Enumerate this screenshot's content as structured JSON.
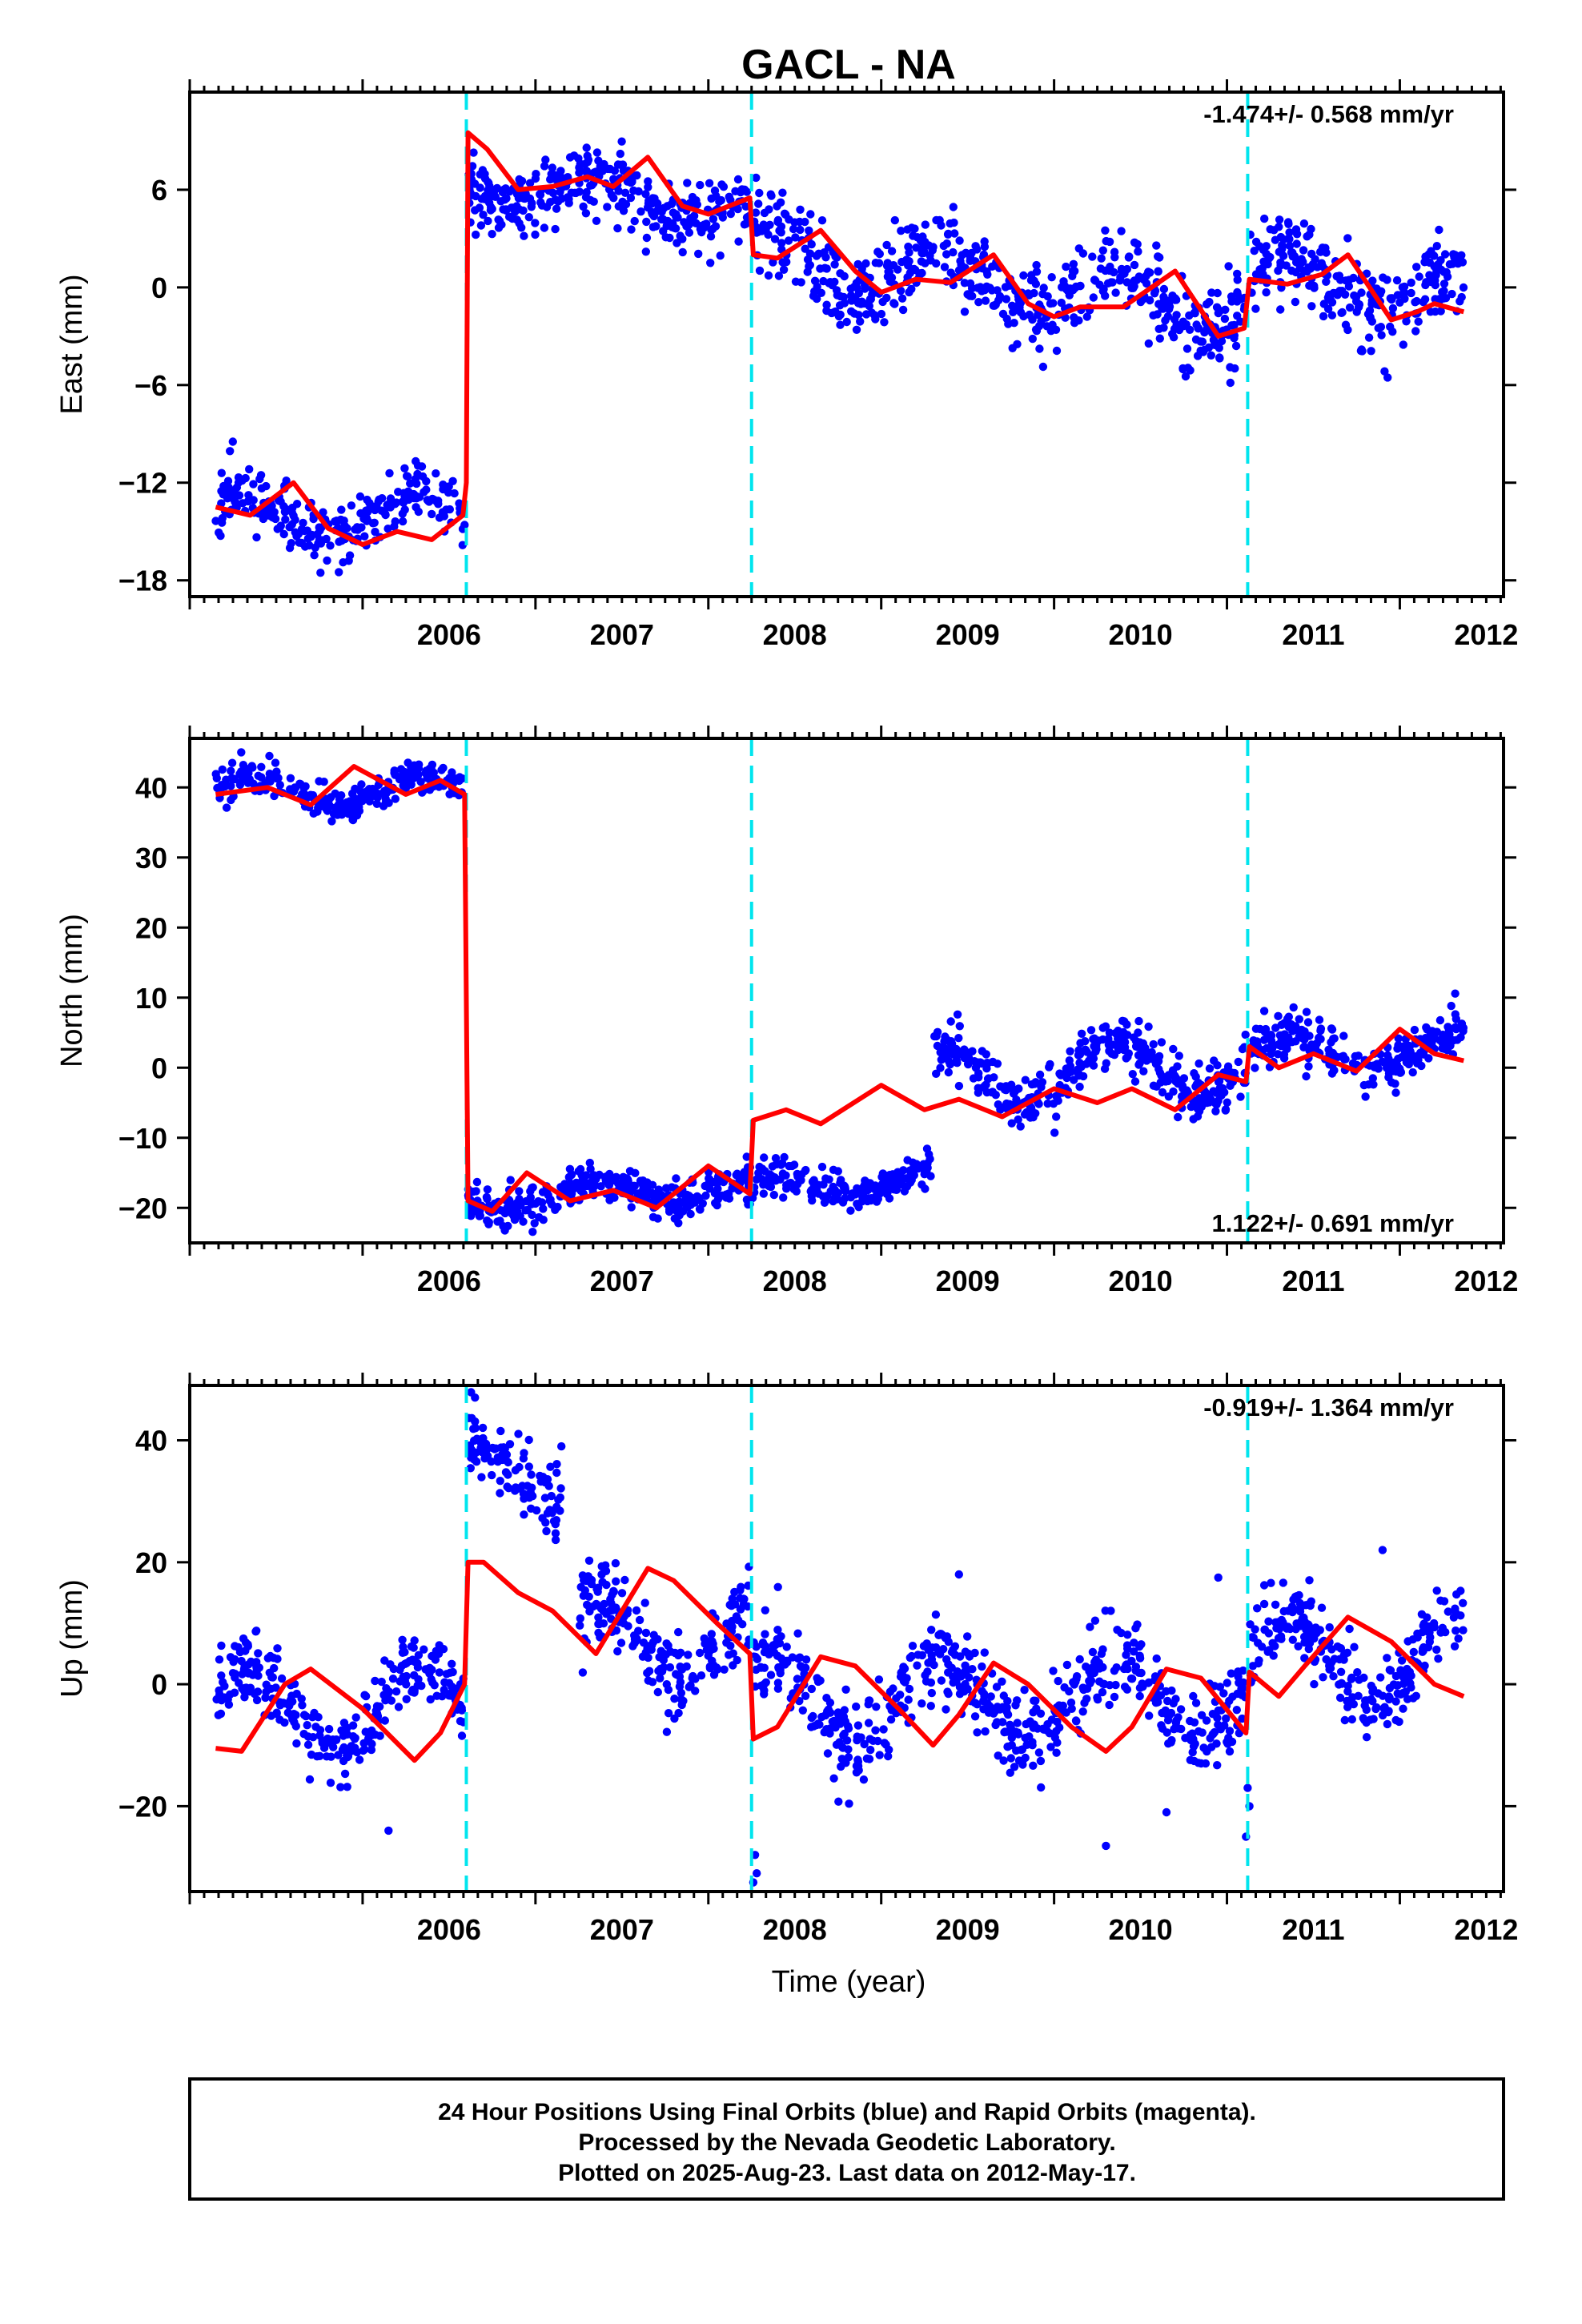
{
  "chart_data": {
    "type": "scatter",
    "title": "GACL - NA",
    "xlabel": "Time (year)",
    "x_tick_labels": [
      "2006",
      "2007",
      "2008",
      "2009",
      "2010",
      "2011",
      "2012"
    ],
    "xlim": [
      2005.0,
      2012.6
    ],
    "offset_epochs": [
      2006.6,
      2008.25,
      2011.12
    ],
    "colors": {
      "points": "#0000ff",
      "model": "#ff0000",
      "offsets": "#00e5ee",
      "frame": "#000000"
    },
    "grid": false,
    "legend": "none",
    "panels": [
      {
        "name": "east",
        "ylabel": "East (mm)",
        "ylim": [
          -19,
          12
        ],
        "yticks": [
          -18,
          -12,
          -6,
          0,
          6
        ],
        "ytick_labels": [
          "−18",
          "−12",
          "−6",
          "0",
          "6"
        ],
        "rate_text": "-1.474+/- 0.568 mm/yr",
        "rate_position": "top-right",
        "model": [
          [
            2005.15,
            -13.5
          ],
          [
            2005.35,
            -14.0
          ],
          [
            2005.6,
            -12.0
          ],
          [
            2005.8,
            -14.8
          ],
          [
            2006.0,
            -15.8
          ],
          [
            2006.2,
            -15.0
          ],
          [
            2006.4,
            -15.5
          ],
          [
            2006.58,
            -14.0
          ],
          [
            2006.6,
            -12.0
          ],
          [
            2006.61,
            9.5
          ],
          [
            2006.72,
            8.5
          ],
          [
            2006.9,
            6.0
          ],
          [
            2007.1,
            6.2
          ],
          [
            2007.3,
            6.8
          ],
          [
            2007.45,
            6.2
          ],
          [
            2007.65,
            8.0
          ],
          [
            2007.85,
            5.0
          ],
          [
            2008.0,
            4.5
          ],
          [
            2008.24,
            5.5
          ],
          [
            2008.26,
            2.0
          ],
          [
            2008.4,
            1.8
          ],
          [
            2008.65,
            3.5
          ],
          [
            2008.85,
            1.0
          ],
          [
            2009.0,
            -0.3
          ],
          [
            2009.2,
            0.5
          ],
          [
            2009.4,
            0.3
          ],
          [
            2009.65,
            2.0
          ],
          [
            2009.85,
            -1.0
          ],
          [
            2010.0,
            -1.8
          ],
          [
            2010.15,
            -1.2
          ],
          [
            2010.4,
            -1.2
          ],
          [
            2010.7,
            1.0
          ],
          [
            2010.95,
            -3.0
          ],
          [
            2011.1,
            -2.5
          ],
          [
            2011.13,
            0.5
          ],
          [
            2011.35,
            0.2
          ],
          [
            2011.55,
            0.8
          ],
          [
            2011.7,
            2.0
          ],
          [
            2011.95,
            -2.0
          ],
          [
            2012.1,
            -1.5
          ],
          [
            2012.2,
            -1.0
          ],
          [
            2012.37,
            -1.5
          ]
        ],
        "series": [
          {
            "start": 2005.15,
            "end": 2006.59,
            "base": -14.0,
            "amp": 1.2,
            "trend": 0.0,
            "noise": 1.0,
            "n": 260,
            "seed": 11
          },
          {
            "start": 2006.61,
            "end": 2008.24,
            "base": 6.5,
            "amp": 1.0,
            "trend": -1.2,
            "noise": 1.1,
            "n": 330,
            "seed": 12
          },
          {
            "start": 2008.26,
            "end": 2011.11,
            "base": 2.0,
            "amp": 1.6,
            "trend": -1.2,
            "noise": 1.3,
            "n": 560,
            "seed": 13
          },
          {
            "start": 2011.13,
            "end": 2012.37,
            "base": 0.8,
            "amp": 1.5,
            "trend": -1.0,
            "noise": 1.3,
            "n": 250,
            "seed": 14
          }
        ]
      },
      {
        "name": "north",
        "ylabel": "North (mm)",
        "ylim": [
          -25,
          47
        ],
        "yticks": [
          -20,
          -10,
          0,
          10,
          20,
          30,
          40
        ],
        "ytick_labels": [
          "−20",
          "−10",
          "0",
          "10",
          "20",
          "30",
          "40"
        ],
        "rate_text": "1.122+/- 0.691 mm/yr",
        "rate_position": "bottom-right",
        "model": [
          [
            2005.15,
            39.0
          ],
          [
            2005.45,
            40.0
          ],
          [
            2005.7,
            37.5
          ],
          [
            2005.95,
            43.0
          ],
          [
            2006.25,
            39.0
          ],
          [
            2006.45,
            41.0
          ],
          [
            2006.59,
            39.0
          ],
          [
            2006.61,
            -19.0
          ],
          [
            2006.75,
            -20.5
          ],
          [
            2006.95,
            -15.0
          ],
          [
            2007.2,
            -19.0
          ],
          [
            2007.45,
            -17.5
          ],
          [
            2007.7,
            -20.0
          ],
          [
            2008.0,
            -14.0
          ],
          [
            2008.24,
            -18.0
          ],
          [
            2008.26,
            -7.5
          ],
          [
            2008.45,
            -6.0
          ],
          [
            2008.65,
            -8.0
          ],
          [
            2009.0,
            -2.5
          ],
          [
            2009.25,
            -6.0
          ],
          [
            2009.45,
            -4.5
          ],
          [
            2009.7,
            -7.0
          ],
          [
            2010.0,
            -3.0
          ],
          [
            2010.25,
            -5.0
          ],
          [
            2010.45,
            -3.0
          ],
          [
            2010.7,
            -6.0
          ],
          [
            2010.95,
            -1.0
          ],
          [
            2011.11,
            -2.0
          ],
          [
            2011.13,
            3.0
          ],
          [
            2011.3,
            0.0
          ],
          [
            2011.5,
            2.0
          ],
          [
            2011.75,
            -0.5
          ],
          [
            2012.0,
            5.5
          ],
          [
            2012.2,
            2.0
          ],
          [
            2012.37,
            1.0
          ]
        ],
        "series": [
          {
            "start": 2005.15,
            "end": 2006.59,
            "base": 39.5,
            "amp": 2.0,
            "trend": 0.0,
            "noise": 1.2,
            "n": 260,
            "seed": 21
          },
          {
            "start": 2006.61,
            "end": 2009.3,
            "base": -19.0,
            "amp": 1.5,
            "trend": 1.2,
            "noise": 1.3,
            "n": 520,
            "seed": 22
          },
          {
            "start": 2009.3,
            "end": 2011.11,
            "base": -1.0,
            "amp": 4.0,
            "trend": 0.8,
            "noise": 1.8,
            "n": 380,
            "seed": 23
          },
          {
            "start": 2011.13,
            "end": 2012.37,
            "base": 2.0,
            "amp": 2.5,
            "trend": 0.5,
            "noise": 1.8,
            "n": 250,
            "seed": 24
          }
        ]
      },
      {
        "name": "up",
        "ylabel": "Up (mm)",
        "ylim": [
          -34,
          49
        ],
        "yticks": [
          -20,
          0,
          20,
          40
        ],
        "ytick_labels": [
          "−20",
          "0",
          "20",
          "40"
        ],
        "rate_text": "-0.919+/- 1.364 mm/yr",
        "rate_position": "top-right",
        "model": [
          [
            2005.15,
            -10.5
          ],
          [
            2005.3,
            -11.0
          ],
          [
            2005.55,
            0.0
          ],
          [
            2005.7,
            2.5
          ],
          [
            2006.0,
            -4.0
          ],
          [
            2006.3,
            -12.5
          ],
          [
            2006.45,
            -8.0
          ],
          [
            2006.59,
            0.0
          ],
          [
            2006.61,
            20.0
          ],
          [
            2006.7,
            20.0
          ],
          [
            2006.9,
            15.0
          ],
          [
            2007.1,
            12.0
          ],
          [
            2007.35,
            5.0
          ],
          [
            2007.5,
            12.0
          ],
          [
            2007.65,
            19.0
          ],
          [
            2007.8,
            17.0
          ],
          [
            2008.05,
            10.0
          ],
          [
            2008.24,
            5.0
          ],
          [
            2008.26,
            -9.0
          ],
          [
            2008.4,
            -7.0
          ],
          [
            2008.65,
            4.5
          ],
          [
            2008.85,
            3.0
          ],
          [
            2009.1,
            -4.0
          ],
          [
            2009.3,
            -10.0
          ],
          [
            2009.45,
            -5.0
          ],
          [
            2009.65,
            3.5
          ],
          [
            2009.85,
            0.0
          ],
          [
            2010.1,
            -7.0
          ],
          [
            2010.3,
            -11.0
          ],
          [
            2010.45,
            -7.0
          ],
          [
            2010.65,
            2.5
          ],
          [
            2010.85,
            1.0
          ],
          [
            2011.11,
            -8.0
          ],
          [
            2011.13,
            2.0
          ],
          [
            2011.3,
            -2.0
          ],
          [
            2011.45,
            3.0
          ],
          [
            2011.7,
            11.0
          ],
          [
            2011.95,
            7.0
          ],
          [
            2012.2,
            0.0
          ],
          [
            2012.37,
            -2.0
          ]
        ],
        "series": [
          {
            "start": 2005.15,
            "end": 2006.59,
            "base": -4.0,
            "amp": 6.5,
            "trend": 0.0,
            "noise": 3.0,
            "n": 280,
            "seed": 31
          },
          {
            "start": 2006.61,
            "end": 2007.15,
            "base": 40.0,
            "amp": 0.0,
            "trend": -20.0,
            "noise": 3.5,
            "n": 110,
            "seed": 32
          },
          {
            "start": 2007.25,
            "end": 2008.24,
            "base": 8.0,
            "amp": 6.0,
            "trend": 0.0,
            "noise": 3.5,
            "n": 200,
            "seed": 33
          },
          {
            "start": 2008.26,
            "end": 2011.11,
            "base": -3.0,
            "amp": 7.0,
            "trend": 0.5,
            "noise": 3.5,
            "n": 560,
            "seed": 34
          },
          {
            "start": 2011.13,
            "end": 2012.37,
            "base": 4.0,
            "amp": 7.0,
            "trend": 0.0,
            "noise": 3.5,
            "n": 250,
            "seed": 35
          }
        ],
        "outliers": [
          [
            2008.27,
            -28.0
          ],
          [
            2008.28,
            -31.0
          ],
          [
            2008.26,
            -32.5
          ],
          [
            2006.15,
            -24.0
          ],
          [
            2011.12,
            -17.0
          ],
          [
            2011.13,
            -20.0
          ],
          [
            2011.11,
            -25.0
          ],
          [
            2010.3,
            -26.5
          ],
          [
            2010.65,
            -21.0
          ],
          [
            2009.45,
            18.0
          ],
          [
            2011.9,
            22.0
          ],
          [
            2006.65,
            47.0
          ],
          [
            2007.15,
            39.0
          ],
          [
            2010.95,
            17.5
          ]
        ]
      }
    ],
    "footer": [
      "24 Hour Positions Using Final Orbits (blue) and Rapid Orbits (magenta).",
      "Processed by the Nevada Geodetic Laboratory.",
      "Plotted on 2025-Aug-23. Last data on 2012-May-17."
    ]
  }
}
